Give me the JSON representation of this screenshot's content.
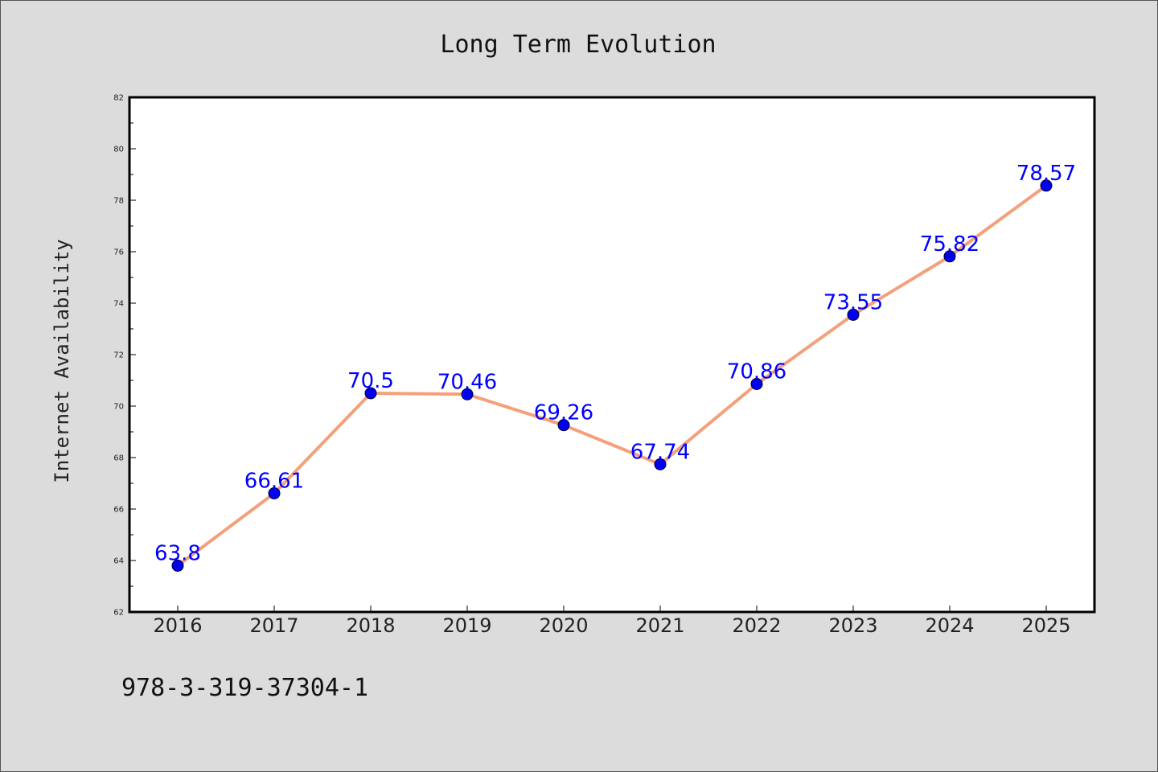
{
  "chart_data": {
    "type": "line",
    "title": "Long Term Evolution",
    "xlabel": "",
    "ylabel": "Internet Availability",
    "categories": [
      "2016",
      "2017",
      "2018",
      "2019",
      "2020",
      "2021",
      "2022",
      "2023",
      "2024",
      "2025"
    ],
    "series": [
      {
        "values": [
          63.8,
          66.61,
          70.5,
          70.46,
          69.26,
          67.74,
          70.86,
          73.55,
          75.82,
          78.57
        ],
        "data_labels": [
          "63.8",
          "66.61",
          "70.5",
          "70.46",
          "69.26",
          "67.74",
          "70.86",
          "73.55",
          "75.82",
          "78.57"
        ],
        "line_color": "#f4a07a",
        "marker_color": "#0000ee"
      }
    ],
    "ylim": [
      62,
      82
    ],
    "yticks": [
      62,
      64,
      66,
      68,
      70,
      72,
      74,
      76,
      78,
      80,
      82
    ],
    "ytick_labels": [
      "62",
      "64",
      "66",
      "68",
      "70",
      "72",
      "74",
      "76",
      "78",
      "80",
      "82"
    ],
    "grid": false,
    "legend": "none",
    "background": "#dcdcdc",
    "plot_background": "#ffffff",
    "label_color": "#0000ff"
  },
  "footer": {
    "text": "978-3-319-37304-1"
  }
}
